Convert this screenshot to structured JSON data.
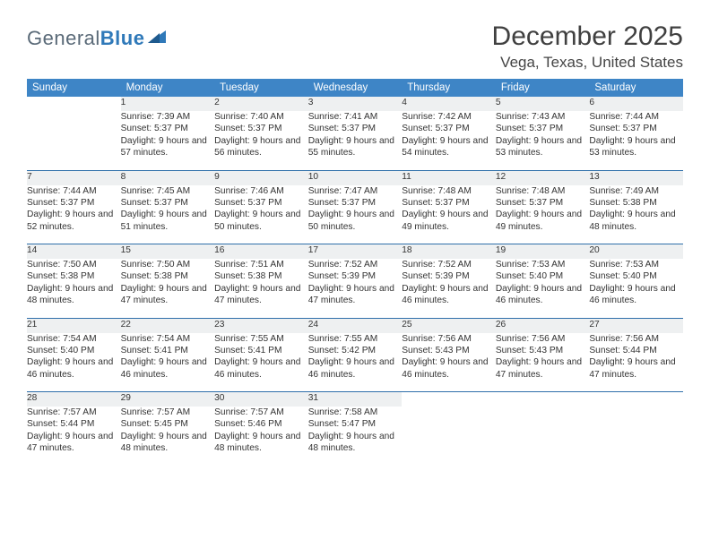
{
  "brand": {
    "name1": "General",
    "name2": "Blue"
  },
  "title": {
    "month": "December 2025",
    "location": "Vega, Texas, United States"
  },
  "colors": {
    "header_bg": "#3e85c6",
    "header_text": "#ffffff",
    "daynum_bg": "#eef0f1",
    "rule": "#2f6faa",
    "text": "#333333",
    "brand_gray": "#5a6a78",
    "brand_blue": "#2f79b9"
  },
  "dayHeaders": [
    "Sunday",
    "Monday",
    "Tuesday",
    "Wednesday",
    "Thursday",
    "Friday",
    "Saturday"
  ],
  "weeks": [
    [
      null,
      {
        "n": "1",
        "sr": "Sunrise: 7:39 AM",
        "ss": "Sunset: 5:37 PM",
        "dl": "Daylight: 9 hours and 57 minutes."
      },
      {
        "n": "2",
        "sr": "Sunrise: 7:40 AM",
        "ss": "Sunset: 5:37 PM",
        "dl": "Daylight: 9 hours and 56 minutes."
      },
      {
        "n": "3",
        "sr": "Sunrise: 7:41 AM",
        "ss": "Sunset: 5:37 PM",
        "dl": "Daylight: 9 hours and 55 minutes."
      },
      {
        "n": "4",
        "sr": "Sunrise: 7:42 AM",
        "ss": "Sunset: 5:37 PM",
        "dl": "Daylight: 9 hours and 54 minutes."
      },
      {
        "n": "5",
        "sr": "Sunrise: 7:43 AM",
        "ss": "Sunset: 5:37 PM",
        "dl": "Daylight: 9 hours and 53 minutes."
      },
      {
        "n": "6",
        "sr": "Sunrise: 7:44 AM",
        "ss": "Sunset: 5:37 PM",
        "dl": "Daylight: 9 hours and 53 minutes."
      }
    ],
    [
      {
        "n": "7",
        "sr": "Sunrise: 7:44 AM",
        "ss": "Sunset: 5:37 PM",
        "dl": "Daylight: 9 hours and 52 minutes."
      },
      {
        "n": "8",
        "sr": "Sunrise: 7:45 AM",
        "ss": "Sunset: 5:37 PM",
        "dl": "Daylight: 9 hours and 51 minutes."
      },
      {
        "n": "9",
        "sr": "Sunrise: 7:46 AM",
        "ss": "Sunset: 5:37 PM",
        "dl": "Daylight: 9 hours and 50 minutes."
      },
      {
        "n": "10",
        "sr": "Sunrise: 7:47 AM",
        "ss": "Sunset: 5:37 PM",
        "dl": "Daylight: 9 hours and 50 minutes."
      },
      {
        "n": "11",
        "sr": "Sunrise: 7:48 AM",
        "ss": "Sunset: 5:37 PM",
        "dl": "Daylight: 9 hours and 49 minutes."
      },
      {
        "n": "12",
        "sr": "Sunrise: 7:48 AM",
        "ss": "Sunset: 5:37 PM",
        "dl": "Daylight: 9 hours and 49 minutes."
      },
      {
        "n": "13",
        "sr": "Sunrise: 7:49 AM",
        "ss": "Sunset: 5:38 PM",
        "dl": "Daylight: 9 hours and 48 minutes."
      }
    ],
    [
      {
        "n": "14",
        "sr": "Sunrise: 7:50 AM",
        "ss": "Sunset: 5:38 PM",
        "dl": "Daylight: 9 hours and 48 minutes."
      },
      {
        "n": "15",
        "sr": "Sunrise: 7:50 AM",
        "ss": "Sunset: 5:38 PM",
        "dl": "Daylight: 9 hours and 47 minutes."
      },
      {
        "n": "16",
        "sr": "Sunrise: 7:51 AM",
        "ss": "Sunset: 5:38 PM",
        "dl": "Daylight: 9 hours and 47 minutes."
      },
      {
        "n": "17",
        "sr": "Sunrise: 7:52 AM",
        "ss": "Sunset: 5:39 PM",
        "dl": "Daylight: 9 hours and 47 minutes."
      },
      {
        "n": "18",
        "sr": "Sunrise: 7:52 AM",
        "ss": "Sunset: 5:39 PM",
        "dl": "Daylight: 9 hours and 46 minutes."
      },
      {
        "n": "19",
        "sr": "Sunrise: 7:53 AM",
        "ss": "Sunset: 5:40 PM",
        "dl": "Daylight: 9 hours and 46 minutes."
      },
      {
        "n": "20",
        "sr": "Sunrise: 7:53 AM",
        "ss": "Sunset: 5:40 PM",
        "dl": "Daylight: 9 hours and 46 minutes."
      }
    ],
    [
      {
        "n": "21",
        "sr": "Sunrise: 7:54 AM",
        "ss": "Sunset: 5:40 PM",
        "dl": "Daylight: 9 hours and 46 minutes."
      },
      {
        "n": "22",
        "sr": "Sunrise: 7:54 AM",
        "ss": "Sunset: 5:41 PM",
        "dl": "Daylight: 9 hours and 46 minutes."
      },
      {
        "n": "23",
        "sr": "Sunrise: 7:55 AM",
        "ss": "Sunset: 5:41 PM",
        "dl": "Daylight: 9 hours and 46 minutes."
      },
      {
        "n": "24",
        "sr": "Sunrise: 7:55 AM",
        "ss": "Sunset: 5:42 PM",
        "dl": "Daylight: 9 hours and 46 minutes."
      },
      {
        "n": "25",
        "sr": "Sunrise: 7:56 AM",
        "ss": "Sunset: 5:43 PM",
        "dl": "Daylight: 9 hours and 46 minutes."
      },
      {
        "n": "26",
        "sr": "Sunrise: 7:56 AM",
        "ss": "Sunset: 5:43 PM",
        "dl": "Daylight: 9 hours and 47 minutes."
      },
      {
        "n": "27",
        "sr": "Sunrise: 7:56 AM",
        "ss": "Sunset: 5:44 PM",
        "dl": "Daylight: 9 hours and 47 minutes."
      }
    ],
    [
      {
        "n": "28",
        "sr": "Sunrise: 7:57 AM",
        "ss": "Sunset: 5:44 PM",
        "dl": "Daylight: 9 hours and 47 minutes."
      },
      {
        "n": "29",
        "sr": "Sunrise: 7:57 AM",
        "ss": "Sunset: 5:45 PM",
        "dl": "Daylight: 9 hours and 48 minutes."
      },
      {
        "n": "30",
        "sr": "Sunrise: 7:57 AM",
        "ss": "Sunset: 5:46 PM",
        "dl": "Daylight: 9 hours and 48 minutes."
      },
      {
        "n": "31",
        "sr": "Sunrise: 7:58 AM",
        "ss": "Sunset: 5:47 PM",
        "dl": "Daylight: 9 hours and 48 minutes."
      },
      null,
      null,
      null
    ]
  ]
}
